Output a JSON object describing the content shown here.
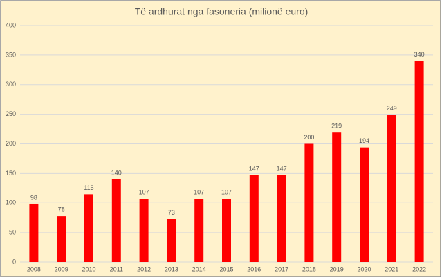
{
  "chart_data": {
    "type": "bar",
    "title": "Të ardhurat nga fasoneria (milionë euro)",
    "categories": [
      "2008",
      "2009",
      "2010",
      "2011",
      "2012",
      "2013",
      "2014",
      "2015",
      "2016",
      "2017",
      "2018",
      "2019",
      "2020",
      "2021",
      "2022"
    ],
    "values": [
      98,
      78,
      115,
      140,
      107,
      73,
      107,
      107,
      147,
      147,
      200,
      219,
      194,
      249,
      340
    ],
    "color": "#ff0000",
    "ylim": [
      0,
      400
    ],
    "yticks": [
      0,
      50,
      100,
      150,
      200,
      250,
      300,
      350,
      400
    ],
    "grid": true
  }
}
